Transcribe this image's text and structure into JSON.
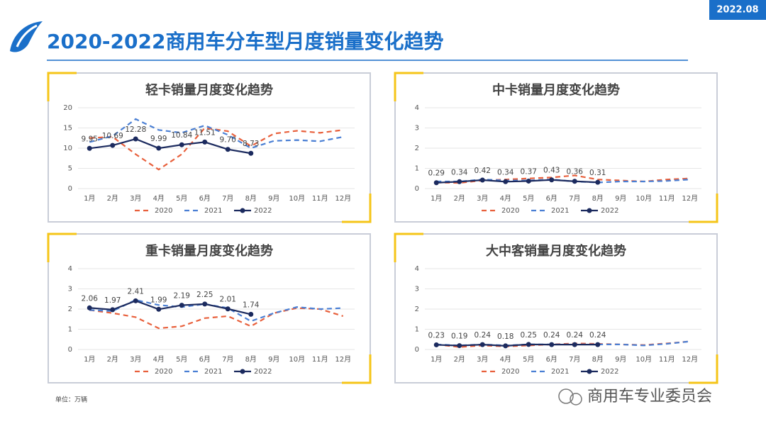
{
  "header": {
    "title": "2020-2022商用车分车型月度销量变化趋势",
    "date": "2022.08"
  },
  "unit": "单位：万辆",
  "footer": "商用车专业委员会",
  "chart_data": [
    {
      "type": "line",
      "title": "轻卡销量月度变化趋势",
      "categories": [
        "1月",
        "2月",
        "3月",
        "4月",
        "5月",
        "6月",
        "7月",
        "8月",
        "9月",
        "10月",
        "11月",
        "12月"
      ],
      "ylim": [
        0,
        20
      ],
      "yticks": [
        0,
        5,
        10,
        15,
        20
      ],
      "series": [
        {
          "name": "2020",
          "color": "#e8603c",
          "style": "dashed",
          "values": [
            12.5,
            12.8,
            8.5,
            4.7,
            8.5,
            15,
            14.2,
            10.5,
            13.6,
            14.3,
            13.8,
            14.5
          ]
        },
        {
          "name": "2021",
          "color": "#4a7fd4",
          "style": "dashed",
          "values": [
            11.5,
            13,
            17.2,
            14.5,
            13.8,
            15.6,
            13.3,
            10,
            11.8,
            12,
            11.7,
            12.8
          ]
        },
        {
          "name": "2022",
          "color": "#1b2a5e",
          "style": "solid",
          "marker": true,
          "values": [
            9.95,
            10.69,
            12.28,
            9.99,
            10.84,
            11.51,
            9.7,
            8.73,
            null,
            null,
            null,
            null
          ],
          "value_labels": [
            "9.95",
            "10.69",
            "12.28",
            "9.99",
            "10.84",
            "11.51",
            "9.70",
            "8.73",
            null,
            null,
            null,
            null
          ]
        }
      ]
    },
    {
      "type": "line",
      "title": "中卡销量月度变化趋势",
      "categories": [
        "1月",
        "2月",
        "3月",
        "4月",
        "5月",
        "6月",
        "7月",
        "8月",
        "9月",
        "10月",
        "11月",
        "12月"
      ],
      "ylim": [
        0,
        4
      ],
      "yticks": [
        0,
        1,
        2,
        3,
        4
      ],
      "series": [
        {
          "name": "2020",
          "color": "#e8603c",
          "style": "dashed",
          "values": [
            0.3,
            0.28,
            0.4,
            0.45,
            0.5,
            0.55,
            0.65,
            0.45,
            0.4,
            0.35,
            0.45,
            0.5
          ]
        },
        {
          "name": "2021",
          "color": "#4a7fd4",
          "style": "dashed",
          "values": [
            0.35,
            0.35,
            0.45,
            0.4,
            0.4,
            0.45,
            0.35,
            0.3,
            0.35,
            0.35,
            0.38,
            0.45
          ]
        },
        {
          "name": "2022",
          "color": "#1b2a5e",
          "style": "solid",
          "marker": true,
          "values": [
            0.29,
            0.34,
            0.42,
            0.34,
            0.37,
            0.43,
            0.36,
            0.31,
            null,
            null,
            null,
            null
          ]
        }
      ]
    },
    {
      "type": "line",
      "title": "重卡销量月度变化趋势",
      "categories": [
        "1月",
        "2月",
        "3月",
        "4月",
        "5月",
        "6月",
        "7月",
        "8月",
        "9月",
        "10月",
        "11月",
        "12月"
      ],
      "ylim": [
        0,
        4
      ],
      "yticks": [
        0,
        1,
        2,
        3,
        4
      ],
      "series": [
        {
          "name": "2020",
          "color": "#e8603c",
          "style": "dashed",
          "values": [
            1.95,
            1.8,
            1.6,
            1.05,
            1.15,
            1.55,
            1.65,
            1.15,
            1.8,
            2.05,
            2.0,
            1.65
          ]
        },
        {
          "name": "2021",
          "color": "#4a7fd4",
          "style": "dashed",
          "values": [
            1.95,
            1.9,
            2.45,
            2.2,
            2.1,
            2.25,
            2.05,
            1.4,
            1.8,
            2.1,
            2.0,
            2.05
          ]
        },
        {
          "name": "2022",
          "color": "#1b2a5e",
          "style": "solid",
          "marker": true,
          "values": [
            2.06,
            1.97,
            2.41,
            1.99,
            2.19,
            2.25,
            2.01,
            1.74,
            null,
            null,
            null,
            null
          ]
        }
      ]
    },
    {
      "type": "line",
      "title": "大中客销量月度变化趋势",
      "categories": [
        "1月",
        "2月",
        "3月",
        "4月",
        "5月",
        "6月",
        "7月",
        "8月",
        "9月",
        "10月",
        "11月",
        "12月"
      ],
      "ylim": [
        0,
        4
      ],
      "yticks": [
        0,
        1,
        2,
        3,
        4
      ],
      "series": [
        {
          "name": "2020",
          "color": "#e8603c",
          "style": "dashed",
          "values": [
            0.25,
            0.12,
            0.2,
            0.15,
            0.2,
            0.25,
            0.3,
            0.28,
            0.25,
            0.22,
            0.3,
            0.4
          ]
        },
        {
          "name": "2021",
          "color": "#4a7fd4",
          "style": "dashed",
          "values": [
            0.25,
            0.2,
            0.25,
            0.2,
            0.25,
            0.25,
            0.25,
            0.25,
            0.25,
            0.2,
            0.28,
            0.4
          ]
        },
        {
          "name": "2022",
          "color": "#1b2a5e",
          "style": "solid",
          "marker": true,
          "values": [
            0.23,
            0.19,
            0.24,
            0.18,
            0.25,
            0.24,
            0.24,
            0.24,
            null,
            null,
            null,
            null
          ]
        }
      ]
    }
  ]
}
